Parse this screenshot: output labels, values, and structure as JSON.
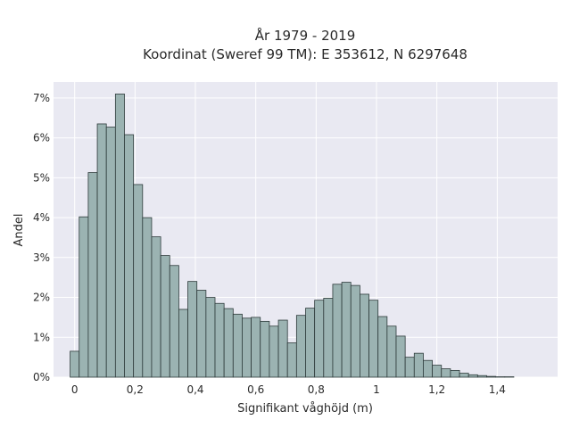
{
  "chart_data": {
    "type": "bar",
    "title": "År 1979 - 2019",
    "subtitle": "Koordinat (Sweref 99 TM): E 353612, N 6297648",
    "xlabel": "Signifikant våghöjd (m)",
    "ylabel": "Andel",
    "xlim": [
      -0.07,
      1.6
    ],
    "ylim": [
      0,
      7.4
    ],
    "x_ticks": [
      0,
      0.2,
      0.4,
      0.6,
      0.8,
      1.0,
      1.2,
      1.4
    ],
    "x_tick_labels": [
      "0",
      "0,2",
      "0,4",
      "0,6",
      "0,8",
      "1",
      "1,2",
      "1,4"
    ],
    "y_ticks": [
      0,
      1,
      2,
      3,
      4,
      5,
      6,
      7
    ],
    "y_tick_labels": [
      "0%",
      "1%",
      "2%",
      "3%",
      "4%",
      "5%",
      "6%",
      "7%"
    ],
    "grid": true,
    "bin_width": 0.03,
    "bin_start": -0.015,
    "values": [
      0.65,
      4.02,
      5.13,
      6.35,
      6.27,
      7.1,
      6.08,
      4.83,
      4.0,
      3.52,
      3.05,
      2.8,
      1.7,
      2.4,
      2.18,
      2.0,
      1.85,
      1.72,
      1.58,
      1.48,
      1.5,
      1.4,
      1.28,
      1.43,
      0.86,
      1.55,
      1.73,
      1.93,
      1.98,
      2.33,
      2.38,
      2.3,
      2.08,
      1.93,
      1.52,
      1.28,
      1.03,
      0.5,
      0.6,
      0.42,
      0.3,
      0.21,
      0.17,
      0.1,
      0.06,
      0.04,
      0.02,
      0.01,
      0.01
    ],
    "colors": {
      "bar_fill": "#9bb3b2",
      "bar_stroke": "#2e3b3b",
      "plot_bg": "#e9e9f2",
      "grid": "#ffffff"
    }
  }
}
